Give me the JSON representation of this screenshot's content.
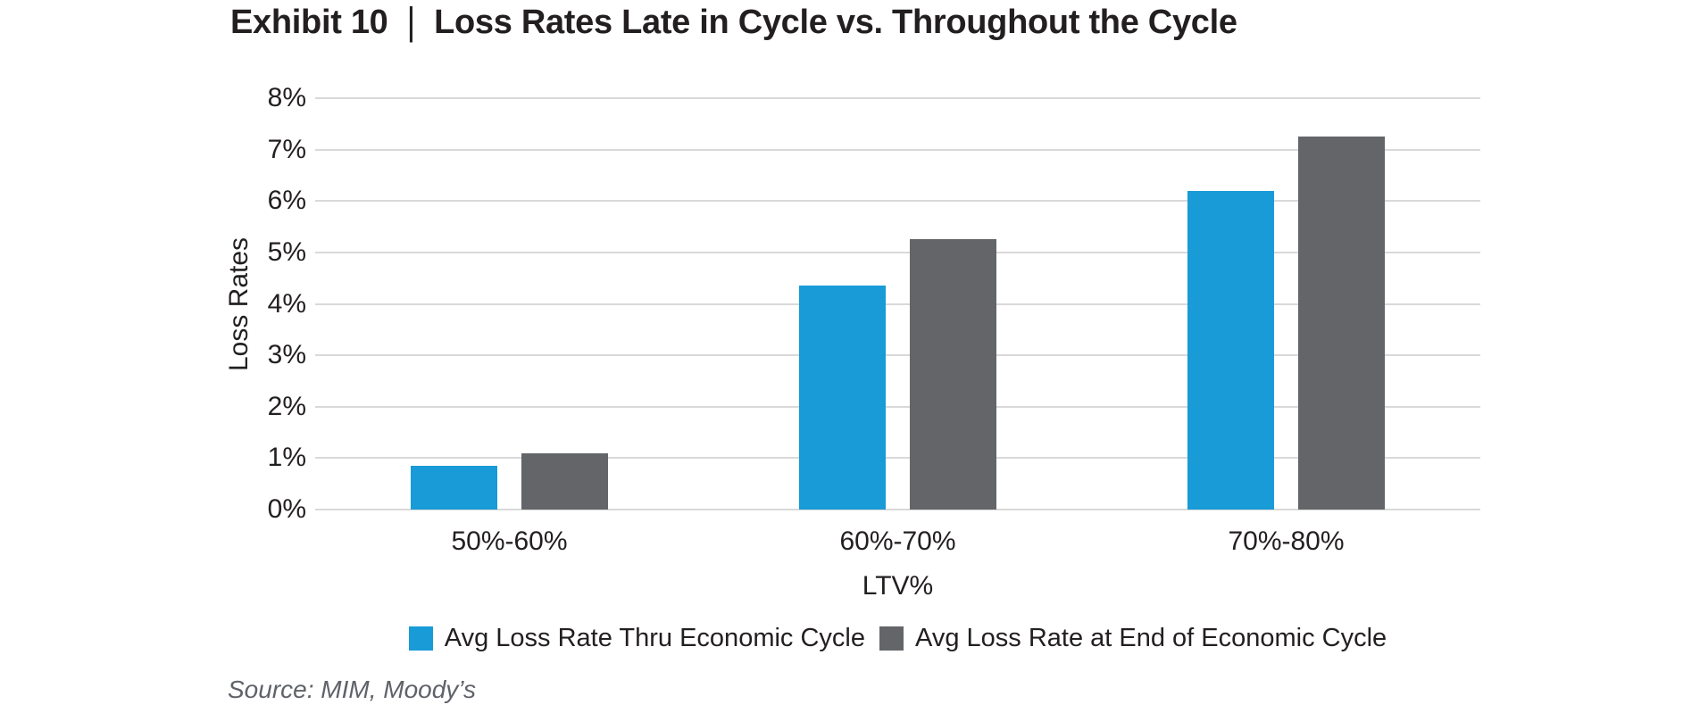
{
  "title": {
    "exhibit_label": "Exhibit 10",
    "separator": "|",
    "main": "Loss Rates Late in Cycle vs. Throughout the Cycle"
  },
  "source": "Source: MIM, Moody’s",
  "colors": {
    "series_blue": "#189BD7",
    "series_gray": "#636569",
    "gridline": "#D9D9D9",
    "text": "#231F20",
    "source_text": "#5F6268"
  },
  "chart_data": {
    "type": "bar",
    "categories": [
      "50%-60%",
      "60%-70%",
      "70%-80%"
    ],
    "series": [
      {
        "name": "Avg Loss Rate Thru Economic Cycle",
        "color": "#189BD7",
        "values": [
          0.85,
          4.35,
          6.2
        ]
      },
      {
        "name": "Avg Loss Rate at End of Economic Cycle",
        "color": "#636569",
        "values": [
          1.1,
          5.25,
          7.25
        ]
      }
    ],
    "title": "Exhibit 10 | Loss Rates Late in Cycle vs. Throughout the Cycle",
    "xlabel": "LTV%",
    "ylabel": "Loss Rates",
    "ylim": [
      0,
      8
    ],
    "yticks": [
      "0%",
      "1%",
      "2%",
      "3%",
      "4%",
      "5%",
      "6%",
      "7%",
      "8%"
    ],
    "grid": true,
    "legend_position": "bottom"
  }
}
